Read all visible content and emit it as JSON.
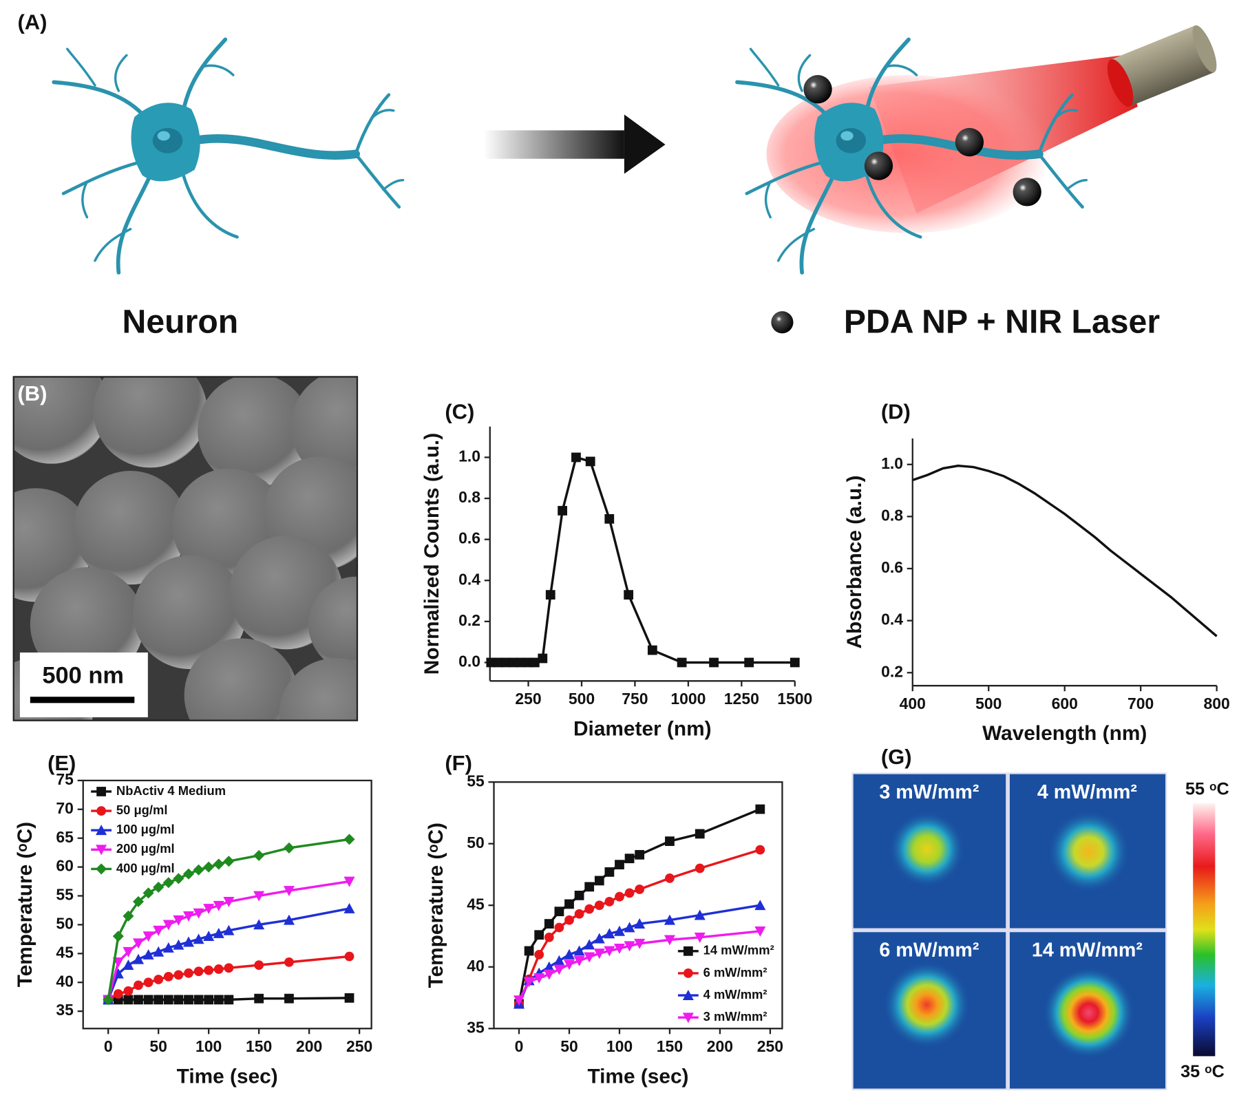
{
  "panel_a": {
    "label": "(A)",
    "left_caption": "Neuron",
    "right_caption": "PDA NP + NIR Laser"
  },
  "panel_b": {
    "label": "(B)",
    "scale_bar": "500 nm"
  },
  "panel_g": {
    "label": "(G)",
    "tiles": [
      "3 mW/mm²",
      "4 mW/mm²",
      "6 mW/mm²",
      "14 mW/mm²"
    ],
    "colorbar_max": "55 ᵒC",
    "colorbar_min": "35 ᵒC"
  },
  "chart_data": [
    {
      "type": "line",
      "label": "(C)",
      "x_label": "Diameter (nm)",
      "y_label": "Normalized Counts (a.u.)",
      "x": [
        75,
        110,
        145,
        180,
        215,
        250,
        280,
        317,
        354,
        410,
        474,
        541,
        630,
        720,
        832,
        970,
        1120,
        1285,
        1500
      ],
      "values": [
        0,
        0,
        0,
        0,
        0,
        0,
        0,
        0.02,
        0.33,
        0.74,
        1.0,
        0.98,
        0.7,
        0.33,
        0.06,
        0,
        0,
        0,
        0
      ],
      "color": "#111111",
      "marker": "square",
      "xlim": [
        70,
        1500
      ],
      "ylim": [
        -0.09,
        1.15
      ],
      "xticks": [
        250,
        500,
        750,
        1000,
        1250,
        1500
      ],
      "yticks": [
        {
          "value": 0,
          "label": "0.0"
        },
        0.2,
        0.4,
        0.6,
        0.8,
        {
          "value": 1,
          "label": "1.0"
        }
      ],
      "frame": false
    },
    {
      "type": "line",
      "label": "(D)",
      "x_label": "Wavelength (nm)",
      "y_label": "Absorbance (a.u.)",
      "x": [
        400,
        420,
        440,
        460,
        480,
        500,
        520,
        540,
        560,
        580,
        600,
        620,
        640,
        660,
        680,
        700,
        720,
        740,
        760,
        780,
        800
      ],
      "values": [
        0.94,
        0.96,
        0.985,
        0.995,
        0.99,
        0.975,
        0.955,
        0.925,
        0.89,
        0.85,
        0.81,
        0.765,
        0.72,
        0.67,
        0.625,
        0.58,
        0.535,
        0.49,
        0.44,
        0.39,
        0.34
      ],
      "color": "#111111",
      "xlim": [
        400,
        800
      ],
      "ylim": [
        0.15,
        1.1
      ],
      "xticks": [
        400,
        500,
        600,
        700,
        800
      ],
      "yticks": [
        0.2,
        0.4,
        0.6,
        0.8,
        {
          "value": 1,
          "label": "1.0"
        }
      ],
      "frame": false
    },
    {
      "type": "line",
      "label": "(E)",
      "x_label": "Time (sec)",
      "y_label": "Temperature (ᵒC)",
      "x": [
        0,
        10,
        20,
        30,
        40,
        50,
        60,
        70,
        80,
        90,
        100,
        110,
        120,
        150,
        180,
        240
      ],
      "series": [
        {
          "name": "NbActiv 4 Medium",
          "color": "#111111",
          "marker": "square",
          "values": [
            37,
            37,
            37,
            37,
            37,
            37,
            37,
            37,
            37,
            37,
            37,
            37,
            37,
            37.2,
            37.2,
            37.3
          ]
        },
        {
          "name": "50 μg/ml",
          "color": "#e8161b",
          "marker": "circle",
          "values": [
            37,
            38,
            38.5,
            39.5,
            40,
            40.5,
            41,
            41.3,
            41.6,
            41.9,
            42.1,
            42.3,
            42.5,
            43,
            43.5,
            44.5
          ]
        },
        {
          "name": "100 μg/ml",
          "color": "#1f2fd6",
          "marker": "triangle-up",
          "values": [
            37,
            41.5,
            43,
            44,
            44.8,
            45.3,
            46,
            46.5,
            47,
            47.5,
            48,
            48.5,
            49,
            50,
            50.8,
            52.8
          ]
        },
        {
          "name": "200 μg/ml",
          "color": "#ee1cee",
          "marker": "triangle-down",
          "values": [
            37,
            43.5,
            45.3,
            46.8,
            48,
            49,
            50,
            50.8,
            51.5,
            52,
            52.8,
            53.3,
            54,
            55,
            55.9,
            57.5
          ]
        },
        {
          "name": "400 μg/ml",
          "color": "#1f8a1f",
          "marker": "diamond",
          "values": [
            37,
            48,
            51.5,
            54,
            55.5,
            56.5,
            57.3,
            58,
            58.8,
            59.5,
            60,
            60.5,
            61,
            62,
            63.3,
            64.8
          ]
        }
      ],
      "xlim": [
        -25,
        262
      ],
      "ylim": [
        32,
        75
      ],
      "xticks": [
        0,
        50,
        100,
        150,
        200,
        250
      ],
      "yticks": [
        35,
        40,
        45,
        50,
        55,
        60,
        65,
        70,
        75
      ],
      "frame": true,
      "legend": "upper left"
    },
    {
      "type": "line",
      "label": "(F)",
      "x_label": "Time (sec)",
      "y_label": "Temperature (ᵒC)",
      "x": [
        0,
        10,
        20,
        30,
        40,
        50,
        60,
        70,
        80,
        90,
        100,
        110,
        120,
        150,
        180,
        240
      ],
      "series": [
        {
          "name": "14 mW/mm²",
          "color": "#111111",
          "marker": "square",
          "values": [
            37,
            41.3,
            42.6,
            43.5,
            44.5,
            45.1,
            45.8,
            46.5,
            47,
            47.7,
            48.3,
            48.8,
            49.1,
            50.2,
            50.8,
            52.8
          ]
        },
        {
          "name": "6 mW/mm²",
          "color": "#e8161b",
          "marker": "circle",
          "values": [
            37,
            39,
            41,
            42.4,
            43.2,
            43.8,
            44.3,
            44.7,
            45,
            45.3,
            45.7,
            46,
            46.3,
            47.2,
            48,
            49.5
          ]
        },
        {
          "name": "4 mW/mm²",
          "color": "#1f2fd6",
          "marker": "triangle-up",
          "values": [
            37,
            38.9,
            39.5,
            40,
            40.5,
            41,
            41.3,
            41.8,
            42.3,
            42.7,
            42.9,
            43.2,
            43.5,
            43.8,
            44.2,
            45
          ]
        },
        {
          "name": "3 mW/mm²",
          "color": "#ee1cee",
          "marker": "triangle-down",
          "values": [
            37.3,
            38.8,
            39.1,
            39.4,
            39.8,
            40.2,
            40.5,
            40.8,
            41.1,
            41.3,
            41.5,
            41.7,
            41.9,
            42.2,
            42.4,
            42.9
          ]
        }
      ],
      "xlim": [
        -25,
        262
      ],
      "ylim": [
        35,
        55
      ],
      "xticks": [
        0,
        50,
        100,
        150,
        200,
        250
      ],
      "yticks": [
        35,
        40,
        45,
        50,
        55
      ],
      "frame": true,
      "legend": "lower right"
    }
  ]
}
